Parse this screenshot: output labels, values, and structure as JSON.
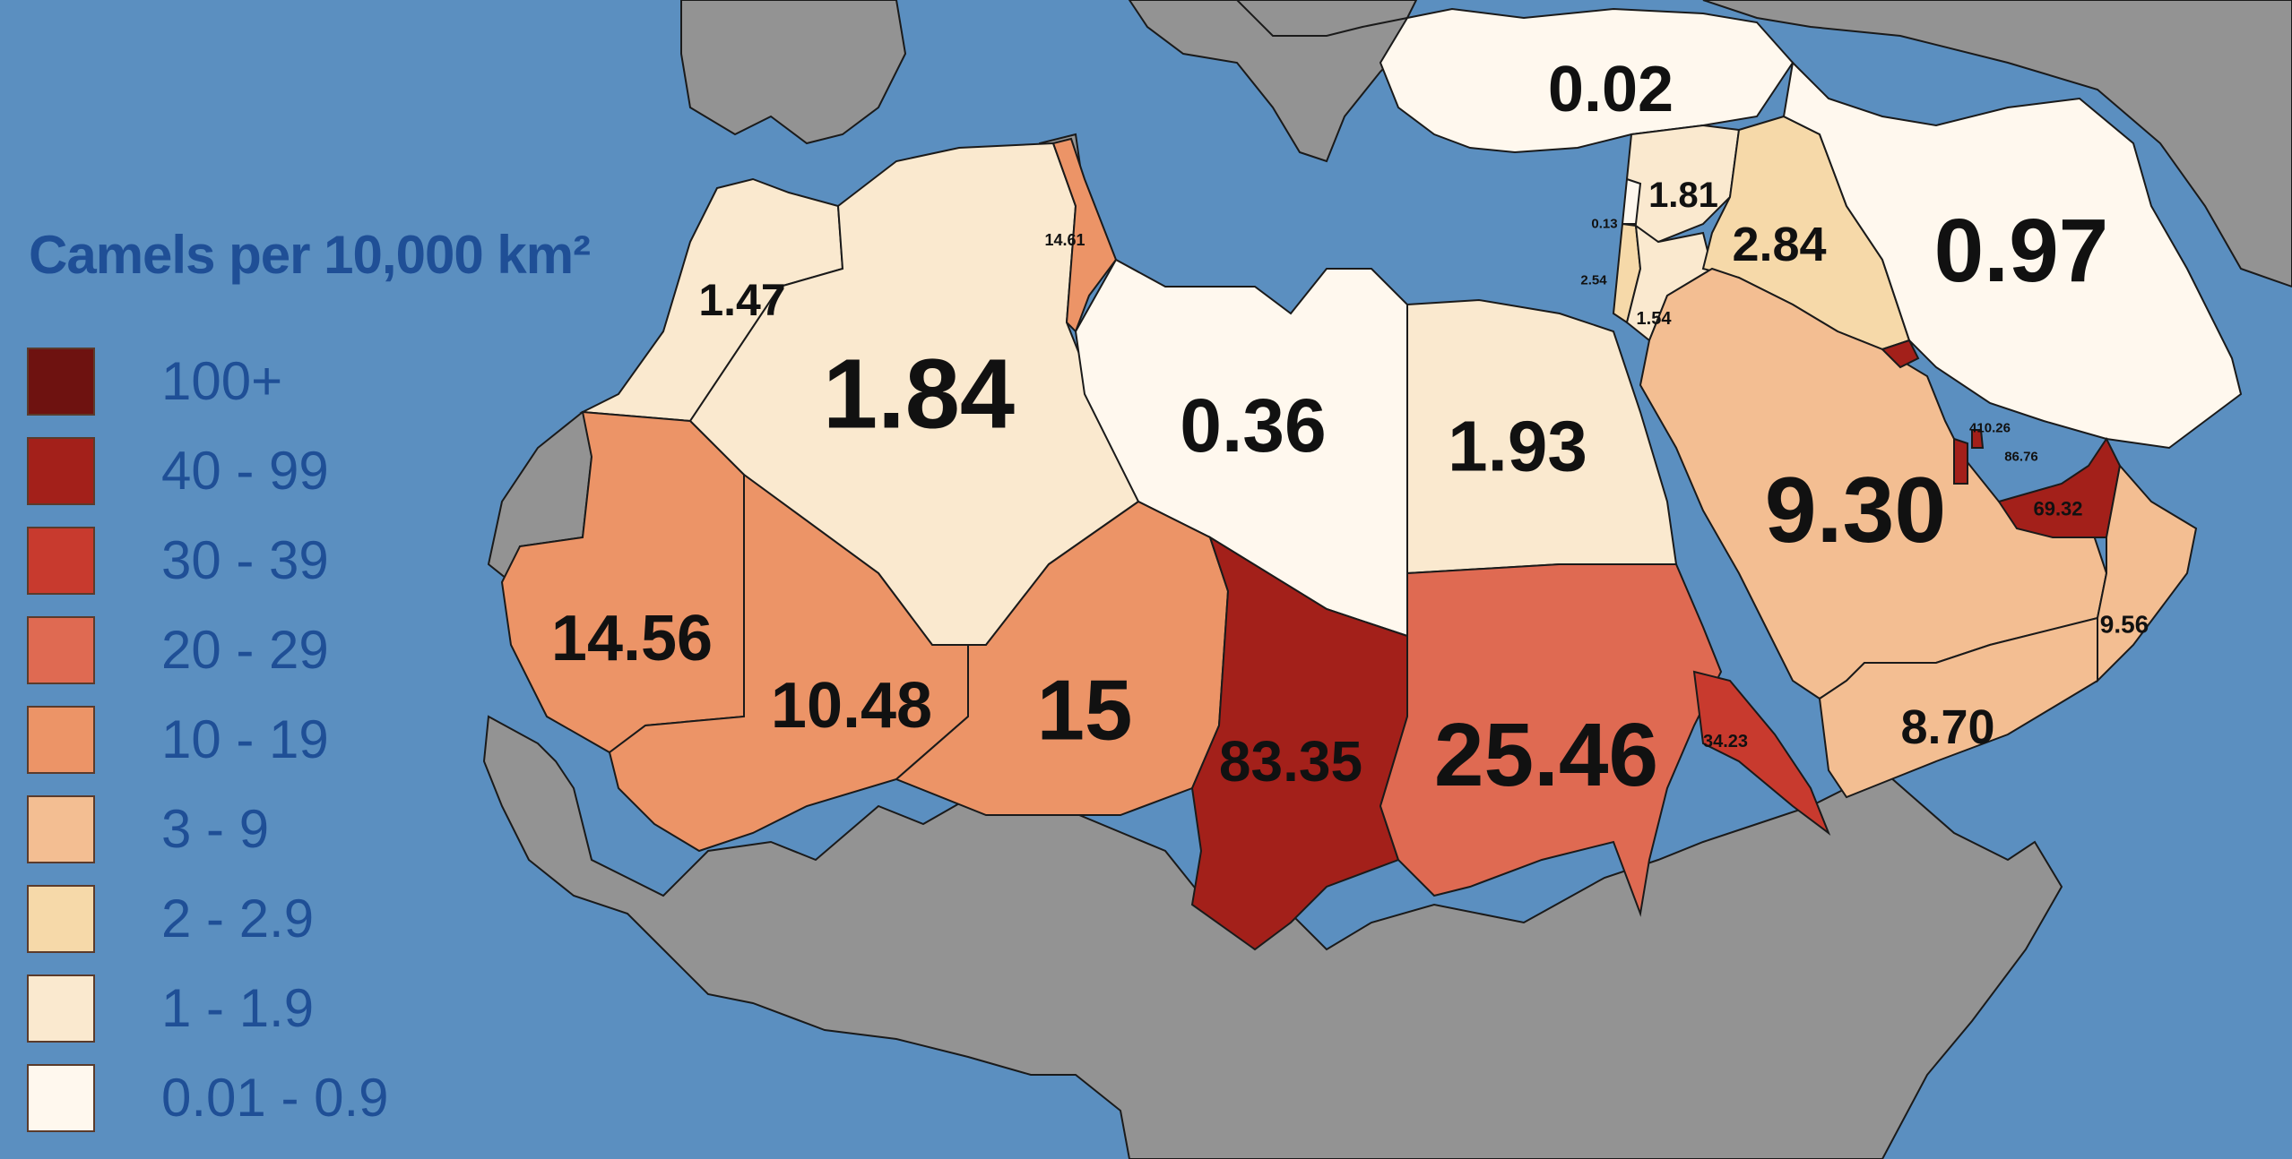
{
  "legend": {
    "title": "Camels per 10,000 km²",
    "items": [
      {
        "label": "100+",
        "color": "#6e1210"
      },
      {
        "label": "40 - 99",
        "color": "#a3201a"
      },
      {
        "label": "30 - 39",
        "color": "#c83a2e"
      },
      {
        "label": "20 - 29",
        "color": "#df6a52"
      },
      {
        "label": "10 - 19",
        "color": "#ec9467"
      },
      {
        "label": "3 - 9",
        "color": "#f3be92"
      },
      {
        "label": "2 - 2.9",
        "color": "#f6d9a9"
      },
      {
        "label": "1 - 1.9",
        "color": "#fae9cf"
      },
      {
        "label": "0.01 - 0.9",
        "color": "#fff8ee"
      }
    ]
  },
  "colors": {
    "sea": "#5b8fc0",
    "other_land": "#939393",
    "border": "#1a1a1a"
  },
  "regions": {
    "morocco": "1.47",
    "algeria": "1.84",
    "tunisia": "14.61",
    "libya": "0.36",
    "egypt": "1.93",
    "mauritania": "14.56",
    "mali": "10.48",
    "niger": "15",
    "chad": "83.35",
    "sudan": "25.46",
    "eritrea": "34.23",
    "turkey": "0.02",
    "syria": "1.81",
    "lebanon": "0.13",
    "israel": "2.54",
    "jordan": "1.54",
    "iraq": "2.84",
    "iran": "0.97",
    "saudi_arabia": "9.30",
    "kuwait_bahrain": "410.26",
    "qatar": "86.76",
    "uae": "69.32",
    "oman": "9.56",
    "yemen": "8.70"
  }
}
